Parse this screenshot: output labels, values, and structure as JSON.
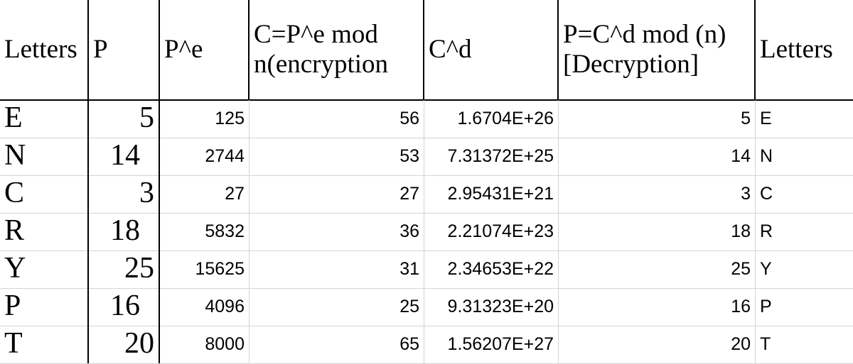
{
  "sheet": {
    "headers": [
      "Letters",
      "P",
      "P^e",
      "C=P^e mod n(encryption",
      "C^d",
      "P=C^d mod (n)[Decryption]",
      "Letters"
    ],
    "rows": [
      {
        "letter": "E",
        "p": "5",
        "pe": "125",
        "c": "56",
        "cd": "1.6704E+26",
        "dec": "5",
        "out": "E"
      },
      {
        "letter": "N",
        "p": "14",
        "pe": "2744",
        "c": "53",
        "cd": "7.31372E+25",
        "dec": "14",
        "out": "N"
      },
      {
        "letter": "C",
        "p": "3",
        "pe": "27",
        "c": "27",
        "cd": "2.95431E+21",
        "dec": "3",
        "out": "C"
      },
      {
        "letter": "R",
        "p": "18",
        "pe": "5832",
        "c": "36",
        "cd": "2.21074E+23",
        "dec": "18",
        "out": "R"
      },
      {
        "letter": "Y",
        "p": "25",
        "pe": "15625",
        "c": "31",
        "cd": "2.34653E+22",
        "dec": "25",
        "out": "Y"
      },
      {
        "letter": "P",
        "p": "16",
        "pe": "4096",
        "c": "25",
        "cd": "9.31323E+20",
        "dec": "16",
        "out": "P"
      },
      {
        "letter": "T",
        "p": "20",
        "pe": "8000",
        "c": "65",
        "cd": "1.56207E+27",
        "dec": "20",
        "out": "T"
      }
    ]
  }
}
